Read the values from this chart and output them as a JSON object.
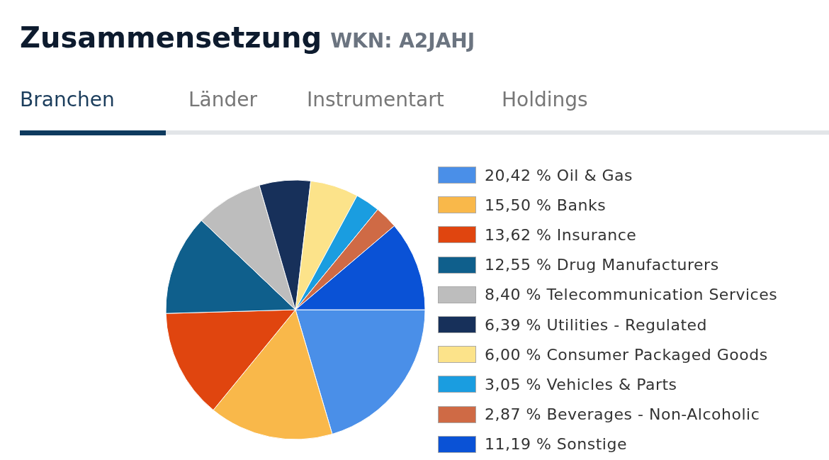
{
  "chart_data": {
    "type": "pie",
    "title": "Zusammensetzung",
    "subtitle": "WKN: A2JAHJ",
    "annotations": [
      "Branchen",
      "Länder",
      "Instrumentart",
      "Holdings"
    ],
    "categories": [
      "Oil & Gas",
      "Banks",
      "Insurance",
      "Drug Manufacturers",
      "Telecommunication Services",
      "Utilities - Regulated",
      "Consumer Packaged Goods",
      "Vehicles & Parts",
      "Beverages - Non-Alcoholic",
      "Sonstige"
    ],
    "values": [
      20.42,
      15.5,
      13.62,
      12.55,
      8.4,
      6.39,
      6.0,
      3.05,
      2.87,
      11.19
    ],
    "value_labels": [
      "20,42 %",
      "15,50 %",
      "13,62 %",
      "12,55 %",
      "8,40 %",
      "6,39 %",
      "6,00 %",
      "3,05 %",
      "2,87 %",
      "11,19 %"
    ],
    "colors": [
      "#4a8fe8",
      "#f9b84a",
      "#e0450f",
      "#0f5f8c",
      "#bdbdbd",
      "#17305a",
      "#fce38a",
      "#1a9de0",
      "#cf6a45",
      "#0a52d6"
    ],
    "legend": "right"
  }
}
